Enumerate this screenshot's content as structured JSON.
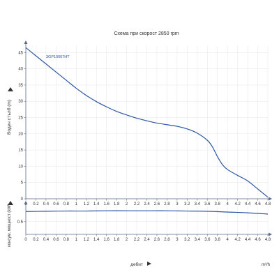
{
  "chart_data": [
    {
      "type": "line",
      "title": "Схема при скорост 2850 rpm",
      "ylabel": "Воден стълб (m)",
      "xlabel": "",
      "xlim": [
        0,
        4.8
      ],
      "ylim": [
        0,
        47
      ],
      "x_ticks": [
        "0",
        "0.2",
        "0.4",
        "0.6",
        "0.8",
        "1",
        "1.2",
        "1.4",
        "1.6",
        "1.8",
        "2",
        "2.2",
        "2.4",
        "2.6",
        "2.8",
        "3",
        "3.2",
        "3.4",
        "3.6",
        "3.8",
        "4",
        "4.2",
        "4.4",
        "4.6",
        "4.8"
      ],
      "y_ticks": [
        0,
        5,
        10,
        15,
        20,
        25,
        30,
        35,
        40,
        45
      ],
      "grid": true,
      "series": [
        {
          "name": "3GP10007HT",
          "color": "#2a55a5",
          "x": [
            0,
            0.2,
            0.4,
            0.6,
            0.8,
            1.0,
            1.2,
            1.4,
            1.6,
            1.8,
            2.0,
            2.2,
            2.4,
            2.6,
            2.8,
            3.0,
            3.2,
            3.4,
            3.6,
            3.7,
            3.8,
            3.9,
            4.0,
            4.2,
            4.4,
            4.6,
            4.8
          ],
          "y": [
            46.5,
            44.0,
            41.5,
            39.0,
            36.5,
            34.0,
            31.8,
            29.9,
            28.3,
            26.9,
            25.8,
            24.8,
            24.0,
            23.3,
            22.8,
            22.3,
            21.5,
            20.2,
            18.0,
            16.0,
            13.0,
            10.5,
            9.0,
            7.2,
            5.5,
            3.0,
            0.5
          ]
        }
      ]
    },
    {
      "type": "line",
      "title": "",
      "ylabel": "консум. мощност (kW)",
      "xlabel": "дебит",
      "xunit": "m³/h",
      "xlim": [
        0,
        4.8
      ],
      "ylim": [
        0,
        1.1
      ],
      "x_ticks": [
        "0",
        "0.2",
        "0.4",
        "0.6",
        "0.8",
        "1",
        "1.2",
        "1.4",
        "1.6",
        "1.8",
        "2",
        "2.2",
        "2.4",
        "2.6",
        "2.8",
        "3",
        "3.2",
        "3.4",
        "3.6",
        "3.8",
        "4",
        "4.2",
        "4.4",
        "4.6",
        "4.8"
      ],
      "y_ticks": [
        0.5
      ],
      "grid": true,
      "series": [
        {
          "name": "",
          "color": "#2a55a5",
          "x": [
            0,
            0.4,
            0.8,
            1.2,
            1.6,
            2.0,
            2.4,
            2.8,
            3.2,
            3.6,
            4.0,
            4.4,
            4.8
          ],
          "y": [
            0.9,
            0.91,
            0.92,
            0.92,
            0.93,
            0.93,
            0.93,
            0.93,
            0.92,
            0.91,
            0.88,
            0.85,
            0.8
          ]
        }
      ]
    }
  ]
}
